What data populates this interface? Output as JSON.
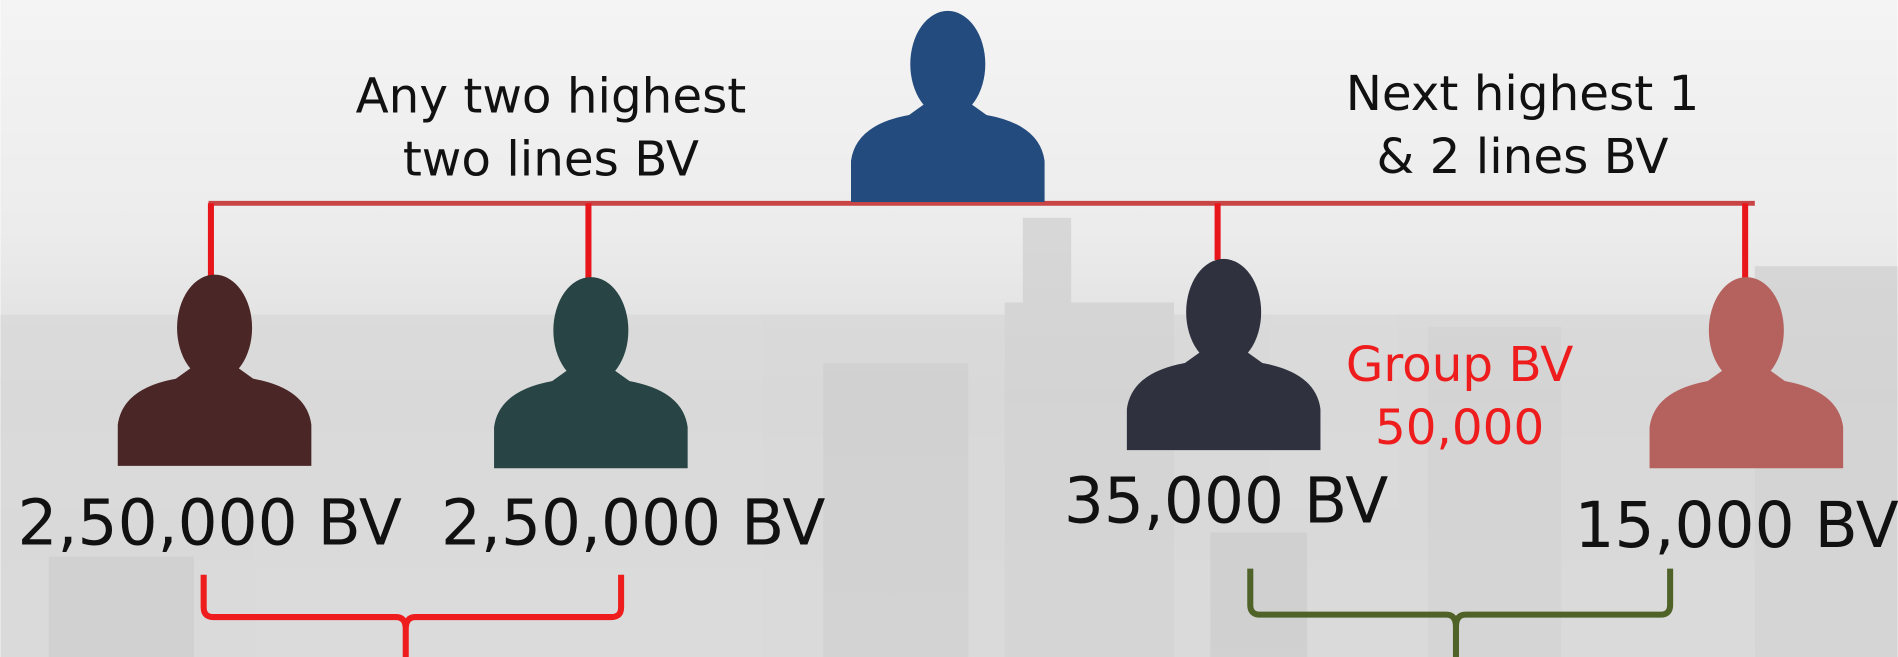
{
  "captions": {
    "left": [
      "Any two highest",
      "two lines BV"
    ],
    "right": [
      "Next highest 1",
      "& 2 lines BV"
    ]
  },
  "nodes": [
    {
      "label": "2,50,000 BV"
    },
    {
      "label": "2,50,000 BV"
    },
    {
      "label": "35,000 BV"
    },
    {
      "label": "15,000 BV"
    }
  ],
  "group": {
    "title": "Group BV",
    "value": "50,000"
  }
}
